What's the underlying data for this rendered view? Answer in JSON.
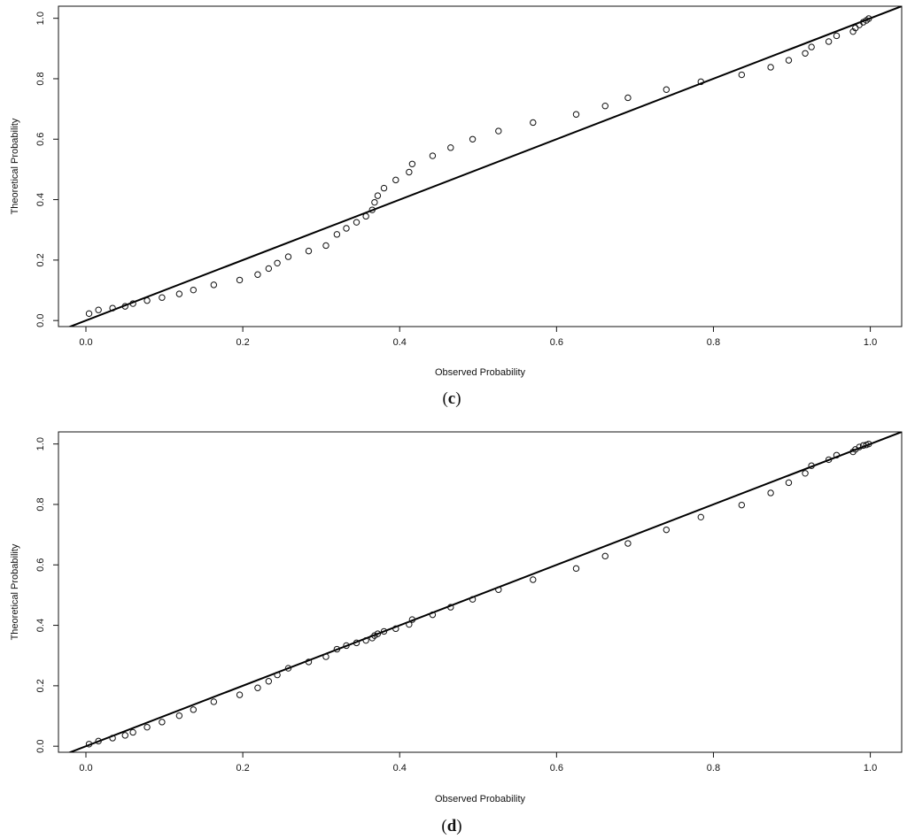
{
  "chart_data": [
    {
      "type": "scatter",
      "panel_label": "c",
      "title": "",
      "xlabel": "Observed Probability",
      "ylabel": "Theoretical Probability",
      "xlim": [
        -0.035,
        1.04
      ],
      "ylim": [
        -0.02,
        1.04
      ],
      "xticks": [
        "0.0",
        "0.2",
        "0.4",
        "0.6",
        "0.8",
        "1.0"
      ],
      "yticks": [
        "0.0",
        "0.2",
        "0.4",
        "0.6",
        "0.8",
        "1.0"
      ],
      "grid": false,
      "reference_line": "y = x",
      "points": [
        [
          0.004,
          0.023
        ],
        [
          0.016,
          0.035
        ],
        [
          0.034,
          0.041
        ],
        [
          0.05,
          0.047
        ],
        [
          0.06,
          0.056
        ],
        [
          0.078,
          0.066
        ],
        [
          0.097,
          0.076
        ],
        [
          0.119,
          0.088
        ],
        [
          0.137,
          0.101
        ],
        [
          0.163,
          0.118
        ],
        [
          0.196,
          0.134
        ],
        [
          0.219,
          0.152
        ],
        [
          0.233,
          0.172
        ],
        [
          0.244,
          0.19
        ],
        [
          0.258,
          0.211
        ],
        [
          0.284,
          0.23
        ],
        [
          0.306,
          0.248
        ],
        [
          0.32,
          0.285
        ],
        [
          0.332,
          0.305
        ],
        [
          0.345,
          0.325
        ],
        [
          0.357,
          0.345
        ],
        [
          0.365,
          0.366
        ],
        [
          0.368,
          0.391
        ],
        [
          0.372,
          0.413
        ],
        [
          0.38,
          0.438
        ],
        [
          0.395,
          0.465
        ],
        [
          0.412,
          0.491
        ],
        [
          0.416,
          0.518
        ],
        [
          0.442,
          0.545
        ],
        [
          0.465,
          0.572
        ],
        [
          0.493,
          0.6
        ],
        [
          0.526,
          0.627
        ],
        [
          0.57,
          0.655
        ],
        [
          0.625,
          0.682
        ],
        [
          0.662,
          0.71
        ],
        [
          0.691,
          0.737
        ],
        [
          0.74,
          0.764
        ],
        [
          0.784,
          0.79
        ],
        [
          0.836,
          0.813
        ],
        [
          0.873,
          0.838
        ],
        [
          0.896,
          0.861
        ],
        [
          0.917,
          0.884
        ],
        [
          0.925,
          0.905
        ],
        [
          0.947,
          0.923
        ],
        [
          0.957,
          0.942
        ],
        [
          0.978,
          0.956
        ],
        [
          0.981,
          0.968
        ],
        [
          0.986,
          0.978
        ],
        [
          0.991,
          0.987
        ],
        [
          0.995,
          0.993
        ],
        [
          0.998,
          0.999
        ]
      ]
    },
    {
      "type": "scatter",
      "panel_label": "d",
      "title": "",
      "xlabel": "Observed Probability",
      "ylabel": "Theoretical Probability",
      "xlim": [
        -0.035,
        1.04
      ],
      "ylim": [
        -0.02,
        1.04
      ],
      "xticks": [
        "0.0",
        "0.2",
        "0.4",
        "0.6",
        "0.8",
        "1.0"
      ],
      "yticks": [
        "0.0",
        "0.2",
        "0.4",
        "0.6",
        "0.8",
        "1.0"
      ],
      "grid": false,
      "reference_line": "y = x",
      "points": [
        [
          0.004,
          0.007
        ],
        [
          0.016,
          0.017
        ],
        [
          0.034,
          0.027
        ],
        [
          0.05,
          0.036
        ],
        [
          0.06,
          0.046
        ],
        [
          0.078,
          0.063
        ],
        [
          0.097,
          0.08
        ],
        [
          0.119,
          0.101
        ],
        [
          0.137,
          0.121
        ],
        [
          0.163,
          0.147
        ],
        [
          0.196,
          0.17
        ],
        [
          0.219,
          0.193
        ],
        [
          0.233,
          0.215
        ],
        [
          0.244,
          0.236
        ],
        [
          0.258,
          0.258
        ],
        [
          0.284,
          0.279
        ],
        [
          0.306,
          0.296
        ],
        [
          0.32,
          0.321
        ],
        [
          0.332,
          0.333
        ],
        [
          0.345,
          0.342
        ],
        [
          0.357,
          0.35
        ],
        [
          0.365,
          0.358
        ],
        [
          0.368,
          0.366
        ],
        [
          0.372,
          0.372
        ],
        [
          0.38,
          0.38
        ],
        [
          0.395,
          0.389
        ],
        [
          0.412,
          0.403
        ],
        [
          0.416,
          0.419
        ],
        [
          0.442,
          0.435
        ],
        [
          0.465,
          0.46
        ],
        [
          0.493,
          0.486
        ],
        [
          0.526,
          0.518
        ],
        [
          0.57,
          0.551
        ],
        [
          0.625,
          0.588
        ],
        [
          0.662,
          0.629
        ],
        [
          0.691,
          0.671
        ],
        [
          0.74,
          0.716
        ],
        [
          0.784,
          0.758
        ],
        [
          0.836,
          0.798
        ],
        [
          0.873,
          0.838
        ],
        [
          0.896,
          0.872
        ],
        [
          0.917,
          0.903
        ],
        [
          0.925,
          0.928
        ],
        [
          0.947,
          0.948
        ],
        [
          0.957,
          0.963
        ],
        [
          0.978,
          0.974
        ],
        [
          0.981,
          0.982
        ],
        [
          0.986,
          0.99
        ],
        [
          0.991,
          0.995
        ],
        [
          0.995,
          0.997
        ],
        [
          0.998,
          1.0
        ]
      ]
    }
  ]
}
